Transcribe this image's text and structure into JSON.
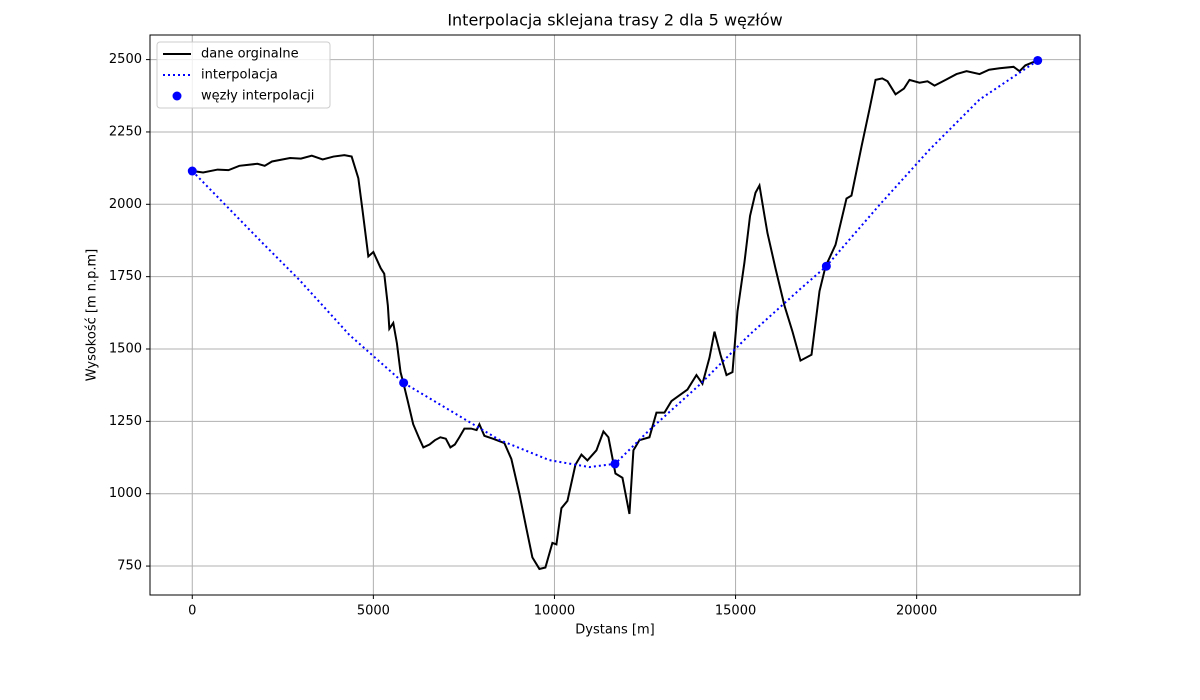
{
  "chart_data": {
    "type": "line",
    "title": "Interpolacja sklejana trasy 2 dla 5 węzłów",
    "x_label": "Dystans [m]",
    "y_label": "Wysokość [m n.p.m]",
    "xlim": [
      -1167,
      24510
    ],
    "ylim": [
      650,
      2585
    ],
    "xticks": [
      0,
      5000,
      10000,
      15000,
      20000
    ],
    "yticks": [
      750,
      1000,
      1250,
      1500,
      1750,
      2000,
      2250,
      2500
    ],
    "grid": true,
    "legend": "upper-left",
    "series": [
      {
        "name": "dane orginalne",
        "type": "line",
        "color": "#000000",
        "dash": "solid",
        "x": [
          0,
          300,
          700,
          1000,
          1300,
          1800,
          2000,
          2200,
          2700,
          3000,
          3300,
          3600,
          3900,
          4200,
          4400,
          4585,
          4700,
          4861,
          5000,
          5200,
          5300,
          5400,
          5441,
          5550,
          5650,
          5750,
          5828,
          5950,
          6100,
          6270,
          6380,
          6550,
          6700,
          6850,
          7000,
          7126,
          7250,
          7375,
          7513,
          7700,
          7850,
          7927,
          8065,
          8300,
          8617,
          8810,
          9031,
          9225,
          9390,
          9584,
          9750,
          9943,
          10054,
          10192,
          10358,
          10579,
          10745,
          10910,
          11159,
          11352,
          11490,
          11683,
          11877,
          12070,
          12180,
          12346,
          12622,
          12816,
          13037,
          13230,
          13451,
          13672,
          13920,
          14086,
          14280,
          14418,
          14584,
          14750,
          14915,
          15053,
          15246,
          15400,
          15550,
          15660,
          15800,
          15882,
          16100,
          16350,
          16572,
          16793,
          17097,
          17318,
          17484,
          17760,
          18063,
          18200,
          18478,
          18700,
          18865,
          19050,
          19196,
          19417,
          19650,
          19803,
          20080,
          20300,
          20494,
          20800,
          21100,
          21378,
          21737,
          22000,
          22289,
          22676,
          22841,
          23000,
          23200,
          23343
        ],
        "values": [
          2115,
          2110,
          2120,
          2118,
          2133,
          2140,
          2133,
          2148,
          2160,
          2158,
          2168,
          2155,
          2165,
          2170,
          2165,
          2090,
          1980,
          1820,
          1835,
          1780,
          1760,
          1650,
          1570,
          1590,
          1520,
          1420,
          1383,
          1320,
          1240,
          1190,
          1160,
          1170,
          1185,
          1195,
          1190,
          1160,
          1170,
          1195,
          1225,
          1225,
          1220,
          1240,
          1200,
          1190,
          1175,
          1120,
          1000,
          880,
          780,
          740,
          745,
          830,
          825,
          950,
          975,
          1100,
          1135,
          1115,
          1150,
          1215,
          1195,
          1070,
          1055,
          930,
          1150,
          1185,
          1195,
          1280,
          1280,
          1320,
          1340,
          1360,
          1410,
          1380,
          1470,
          1560,
          1480,
          1410,
          1420,
          1630,
          1800,
          1960,
          2040,
          2065,
          1960,
          1900,
          1780,
          1650,
          1560,
          1460,
          1480,
          1700,
          1785,
          1860,
          2020,
          2030,
          2200,
          2330,
          2430,
          2435,
          2425,
          2380,
          2400,
          2430,
          2420,
          2425,
          2410,
          2430,
          2450,
          2460,
          2450,
          2465,
          2470,
          2475,
          2460,
          2480,
          2490,
          2497
        ]
      },
      {
        "name": "interpolacja",
        "type": "line",
        "color": "#0000ff",
        "dash": "dotted",
        "x": [
          0,
          1989,
          2955,
          4336,
          5836,
          7098,
          8479,
          9860,
          10965,
          11671,
          12622,
          14003,
          15383,
          16765,
          17507,
          18975,
          20356,
          21737,
          23343
        ],
        "values": [
          2115,
          1860,
          1739,
          1549,
          1383,
          1289,
          1186,
          1116,
          1092,
          1103,
          1220,
          1376,
          1549,
          1705,
          1786,
          1998,
          2189,
          2362,
          2497
        ]
      },
      {
        "name": "węzły interpolacji",
        "type": "scatter",
        "color": "#0000ff",
        "x": [
          0,
          5836,
          11671,
          17507,
          23343
        ],
        "values": [
          2115,
          1383,
          1103,
          1786,
          2497
        ]
      }
    ]
  }
}
